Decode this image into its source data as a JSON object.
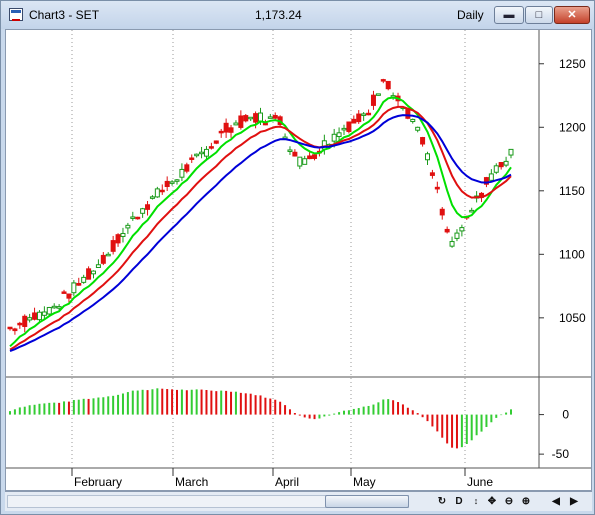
{
  "window": {
    "title": "Chart3 - SET",
    "price": "1,173.24",
    "period": "Daily",
    "minimize_label": "▬",
    "maximize_label": "□",
    "close_label": "✕"
  },
  "price_axis": {
    "ticks": [
      "1250",
      "1200",
      "1150",
      "1100",
      "1050"
    ],
    "values": [
      1250,
      1200,
      1150,
      1100,
      1050
    ],
    "range": [
      1005,
      1275
    ]
  },
  "indicator_axis": {
    "ticks": [
      "0",
      "-50"
    ],
    "values": [
      0,
      -50
    ],
    "range": [
      -65,
      45
    ]
  },
  "time_axis": {
    "labels": [
      "February",
      "March",
      "April",
      "May",
      "June"
    ]
  },
  "colors": {
    "up": "#1a9a1a",
    "down": "#e01010",
    "ma_fast": "#00e000",
    "ma_mid": "#e01010",
    "ma_slow": "#0000d8",
    "hist_up": "#33cc33",
    "hist_down": "#e01010"
  },
  "toolbar": {
    "buttons": [
      "◀",
      "▶",
      "↻",
      "D",
      "✥",
      "⊖",
      "⊕",
      "◀",
      "▶"
    ]
  }
}
